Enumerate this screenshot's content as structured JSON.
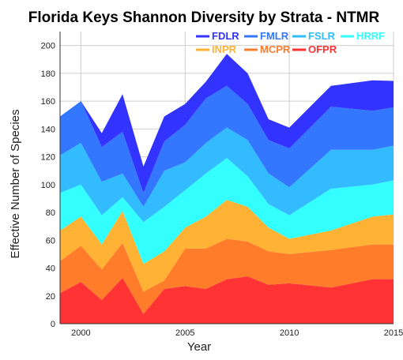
{
  "chart_data": {
    "type": "area",
    "title": "Florida Keys Shannon Diversity by Strata - NTMR",
    "xlabel": "Year",
    "ylabel": "Effective Number of Species",
    "xlim": [
      1999,
      2015
    ],
    "ylim": [
      0,
      210
    ],
    "x_ticks": [
      "2000",
      "2005",
      "2010",
      "2015"
    ],
    "x_tick_values": [
      2000,
      2005,
      2010,
      2015
    ],
    "y_ticks": [
      "0",
      "20",
      "40",
      "60",
      "80",
      "100",
      "120",
      "140",
      "160",
      "180",
      "200"
    ],
    "y_tick_values": [
      0,
      20,
      40,
      60,
      80,
      100,
      120,
      140,
      160,
      180,
      200
    ],
    "grid": true,
    "legend_position": "top-right",
    "stacked": true,
    "x": [
      1999,
      2000,
      2001,
      2002,
      2003,
      2004,
      2005,
      2006,
      2007,
      2008,
      2009,
      2010,
      2012,
      2014,
      2016
    ],
    "series": [
      {
        "name": "OFPR",
        "color": "#ff3333",
        "values": [
          22,
          30,
          17,
          33,
          7,
          25,
          27,
          25,
          32,
          34,
          28,
          29,
          26,
          32,
          32
        ]
      },
      {
        "name": "MCPR",
        "color": "#ff7c2b",
        "values": [
          23,
          26,
          22,
          25,
          16,
          6,
          27,
          29,
          29,
          25,
          24,
          21,
          27,
          25,
          25
        ]
      },
      {
        "name": "INPR",
        "color": "#ffb233",
        "values": [
          22,
          21,
          18,
          23,
          20,
          21,
          15,
          23,
          28,
          25,
          17,
          11,
          14,
          20,
          23
        ]
      },
      {
        "name": "HRRF",
        "color": "#33ffff",
        "values": [
          27,
          23,
          21,
          10,
          30,
          32,
          27,
          31,
          30,
          22,
          17,
          17,
          30,
          23,
          26
        ]
      },
      {
        "name": "FSLR",
        "color": "#33bbff",
        "values": [
          27,
          30,
          24,
          17,
          11,
          26,
          20,
          22,
          22,
          26,
          22,
          20,
          28,
          25,
          25
        ]
      },
      {
        "name": "FMLR",
        "color": "#3377ff",
        "values": [
          28,
          30,
          25,
          30,
          10,
          21,
          27,
          32,
          30,
          26,
          24,
          28,
          31,
          28,
          27
        ]
      },
      {
        "name": "FDLR",
        "color": "#3333ff",
        "values": [
          0,
          0,
          10,
          27,
          19,
          18,
          15,
          12,
          23,
          22,
          15,
          15,
          15,
          22,
          16
        ]
      }
    ],
    "legend_order": [
      "FDLR",
      "FMLR",
      "FSLR",
      "HRRF",
      "INPR",
      "MCPR",
      "OFPR"
    ]
  }
}
